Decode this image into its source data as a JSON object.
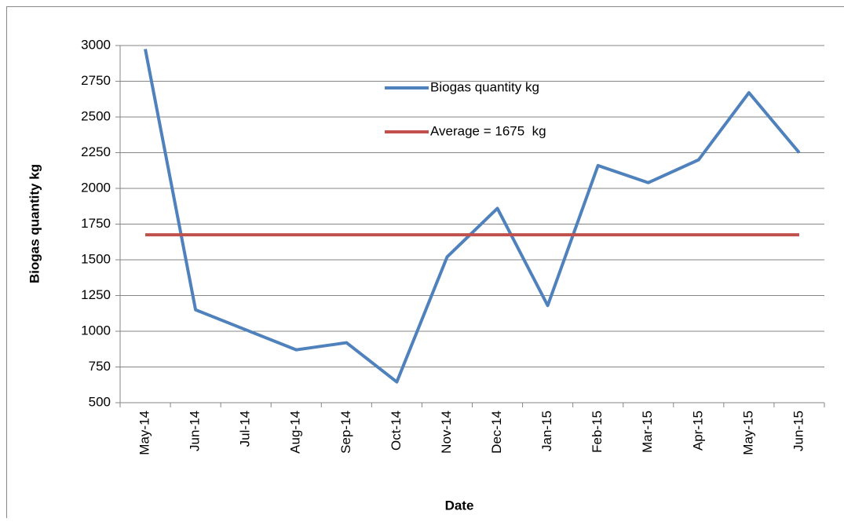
{
  "chart_data": {
    "type": "line",
    "x_label": "Date",
    "y_label": "Biogas quantity kg",
    "categories": [
      "May-14",
      "Jun-14",
      "Jul-14",
      "Aug-14",
      "Sep-14",
      "Oct-14",
      "Nov-14",
      "Dec-14",
      "Jan-15",
      "Feb-15",
      "Mar-15",
      "Apr-15",
      "May-15",
      "Jun-15"
    ],
    "series": [
      {
        "name": "Biogas quantity kg",
        "color": "#4f81bd",
        "values": [
          2975,
          1150,
          1010,
          870,
          920,
          645,
          1520,
          1860,
          1180,
          2160,
          2040,
          2200,
          2670,
          2250
        ]
      },
      {
        "name": "Average = 1675  kg",
        "color": "#c0504d",
        "values": [
          1675,
          1675,
          1675,
          1675,
          1675,
          1675,
          1675,
          1675,
          1675,
          1675,
          1675,
          1675,
          1675,
          1675
        ]
      }
    ],
    "ylim": [
      500,
      3000
    ],
    "yticks": [
      500,
      750,
      1000,
      1250,
      1500,
      1750,
      2000,
      2250,
      2500,
      2750,
      3000
    ],
    "grid": true,
    "legend": "top"
  }
}
